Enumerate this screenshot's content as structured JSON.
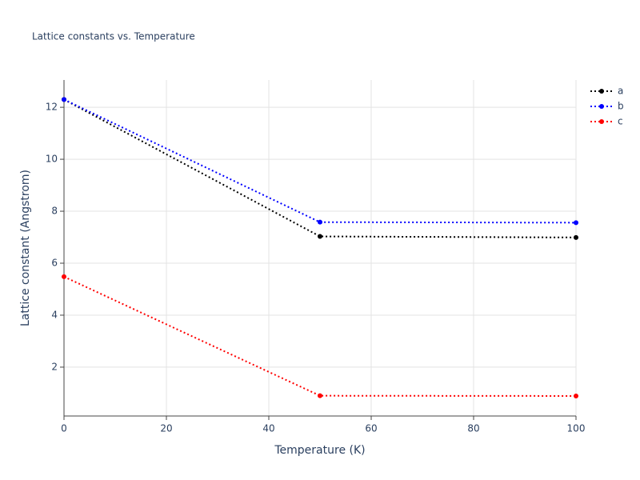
{
  "chart_data": {
    "type": "line",
    "title": "Lattice constants vs. Temperature",
    "x_label": "Temperature (K)",
    "y_label": "Lattice constant (Angstrom)",
    "x": [
      0,
      50,
      100
    ],
    "series": [
      {
        "name": "a",
        "color": "#000000",
        "values": [
          12.3,
          7.03,
          6.99
        ]
      },
      {
        "name": "b",
        "color": "#0000ff",
        "values": [
          12.3,
          7.58,
          7.56
        ]
      },
      {
        "name": "c",
        "color": "#ff0000",
        "values": [
          5.48,
          0.9,
          0.89
        ]
      }
    ],
    "xlim": [
      0,
      100
    ],
    "xticks": [
      0,
      20,
      40,
      60,
      80,
      100
    ],
    "ylim": [
      0.12,
      13.05
    ],
    "yticks": [
      2,
      4,
      6,
      8,
      10,
      12
    ],
    "grid": true,
    "legend": "right"
  }
}
